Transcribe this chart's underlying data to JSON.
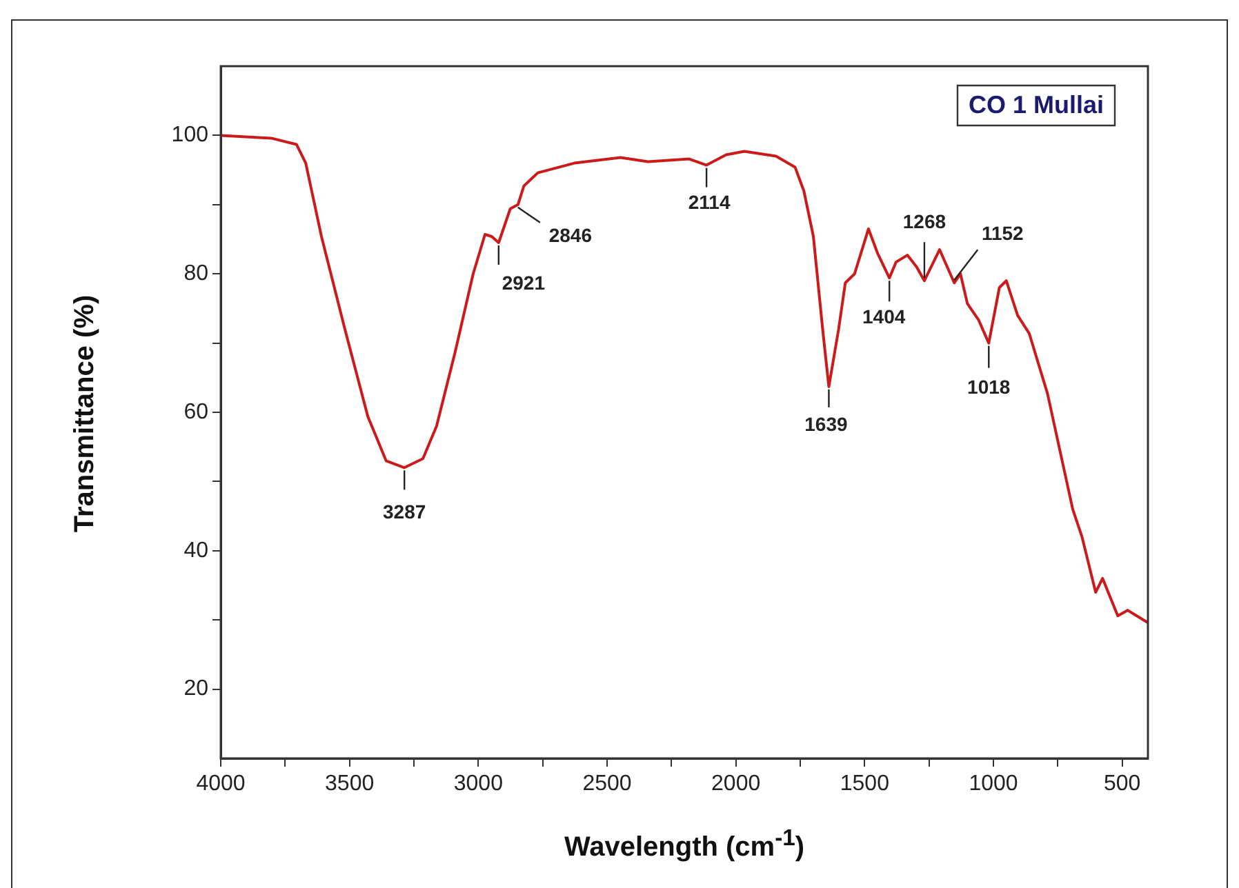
{
  "chart_data": {
    "type": "line",
    "xlabel": "Wavelength (cm$^{-1}$)",
    "ylabel": "Transmittance (%)",
    "xlim": [
      4000,
      400
    ],
    "xticks": [
      4000,
      {
        "value": 3750,
        "label": null
      },
      3500,
      {
        "value": 3250,
        "label": null
      },
      3000,
      {
        "value": 2750,
        "label": null
      },
      2500,
      {
        "value": 2250,
        "label": null
      },
      2000,
      {
        "value": 1750,
        "label": null
      },
      1500,
      {
        "value": 1250,
        "label": null
      },
      1000,
      {
        "value": 750,
        "label": null
      },
      500
    ],
    "ylim": [
      10,
      110
    ],
    "yticks": [
      20,
      {
        "value": 30,
        "label": null
      },
      40,
      {
        "value": 50,
        "label": null
      },
      60,
      {
        "value": 70,
        "label": null
      },
      80,
      {
        "value": 90,
        "label": null
      },
      100
    ],
    "grid": false,
    "marker": "none",
    "line_style": "solid",
    "series": [
      {
        "color": "#cc1a1a",
        "x": [
          4000,
          3804,
          3706,
          3670,
          3609,
          3518,
          3429,
          3358,
          3287,
          3215,
          3162,
          3090,
          3020,
          2974,
          2948,
          2921,
          2876,
          2846,
          2823,
          2769,
          2627,
          2448,
          2341,
          2181,
          2114,
          2038,
          1967,
          1844,
          1770,
          1736,
          1699,
          1663,
          1639,
          1601,
          1575,
          1539,
          1485,
          1450,
          1404,
          1378,
          1334,
          1298,
          1268,
          1209,
          1152,
          1128,
          1101,
          1057,
          1018,
          977,
          950,
          906,
          861,
          790,
          692,
          656,
          603,
          576,
          517,
          479,
          400
        ],
        "values": [
          100,
          99.6,
          98.7,
          96,
          85.4,
          72,
          59.4,
          53,
          52,
          53.3,
          58,
          68.7,
          80,
          85.7,
          85.4,
          84.5,
          89.4,
          90,
          92.7,
          94.6,
          96,
          96.8,
          96.2,
          96.6,
          95.7,
          97.2,
          97.7,
          97,
          95.4,
          92,
          85.4,
          72,
          63.7,
          72,
          78.7,
          80,
          86.5,
          83,
          79.4,
          81.7,
          82.7,
          81,
          79,
          83.5,
          78.7,
          80,
          75.7,
          73.3,
          70,
          78,
          79,
          74,
          71.4,
          62.7,
          46,
          42,
          34,
          36,
          30.6,
          31.4,
          29.6
        ]
      }
    ],
    "annotations": [
      "CO 1 Mullai",
      {
        "text": "3287",
        "x": 3287,
        "y": 52
      },
      {
        "text": "2921",
        "x": 2921,
        "y": 84.5
      },
      {
        "text": "2846",
        "x": 2846,
        "y": 90
      },
      {
        "text": "2114",
        "x": 2114,
        "y": 95.7
      },
      {
        "text": "1639",
        "x": 1639,
        "y": 63.7
      },
      {
        "text": "1404",
        "x": 1404,
        "y": 79.4
      },
      {
        "text": "1268",
        "x": 1268,
        "y": 79
      },
      {
        "text": "1152",
        "x": 1152,
        "y": 78.7
      },
      {
        "text": "1018",
        "x": 1018,
        "y": 70
      }
    ]
  }
}
